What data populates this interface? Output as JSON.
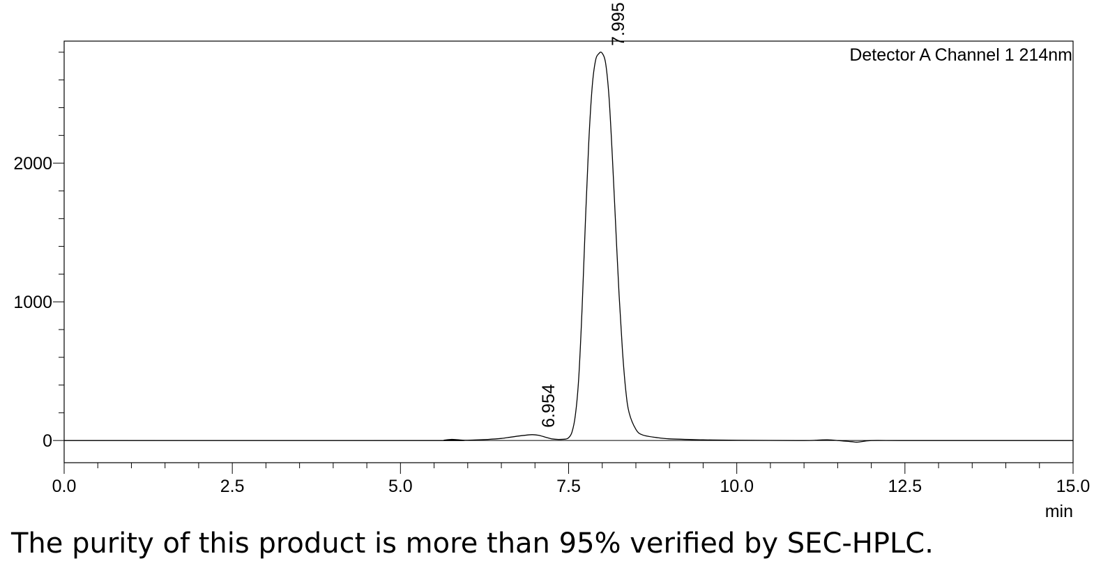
{
  "chart_data": {
    "type": "line",
    "channel_label": "Detector A Channel 1 214nm",
    "x_unit": "min",
    "xlim": [
      0,
      15
    ],
    "ylim": [
      -160,
      2880
    ],
    "x_ticks": [
      "0.0",
      "2.5",
      "5.0",
      "7.5",
      "10.0",
      "12.5",
      "15.0"
    ],
    "y_ticks": [
      "0",
      "1000",
      "2000"
    ],
    "x_minor_step": 0.5,
    "y_minor_step": 200,
    "baseline": 0,
    "grid": false,
    "series": [
      {
        "x": [
          0,
          5.5,
          5.65,
          5.75,
          5.85,
          5.95,
          6.1,
          6.3,
          6.5,
          6.65,
          6.8,
          6.954,
          7.05,
          7.15,
          7.25,
          7.35,
          7.45,
          7.5,
          7.55,
          7.6,
          7.65,
          7.7,
          7.75,
          7.8,
          7.85,
          7.9,
          7.95,
          7.995,
          8.05,
          8.1,
          8.15,
          8.2,
          8.25,
          8.3,
          8.35,
          8.4,
          8.5,
          8.6,
          8.8,
          9.0,
          9.5,
          10.0,
          11.0,
          11.2,
          11.35,
          11.5,
          11.7,
          11.8,
          12.0,
          12.5,
          15.0
        ],
        "y": [
          0,
          0,
          3,
          8,
          6,
          2,
          4,
          8,
          15,
          25,
          35,
          42,
          38,
          25,
          12,
          8,
          10,
          20,
          60,
          180,
          450,
          950,
          1580,
          2150,
          2550,
          2740,
          2790,
          2795,
          2720,
          2480,
          2050,
          1550,
          1050,
          650,
          360,
          200,
          80,
          40,
          22,
          12,
          5,
          2,
          0,
          3,
          5,
          0,
          -8,
          -12,
          0,
          0,
          0
        ]
      }
    ],
    "peak_labels": [
      {
        "x": 6.954,
        "y": 42,
        "label": "6.954"
      },
      {
        "x": 7.995,
        "y": 2795,
        "label": "7.995"
      }
    ]
  },
  "caption": "The purity of this product is more than 95% verified by SEC-HPLC."
}
